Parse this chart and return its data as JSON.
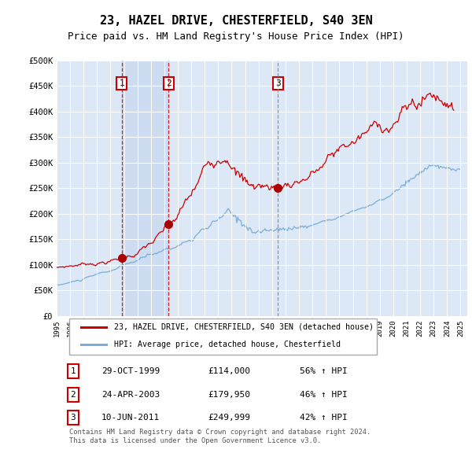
{
  "title": "23, HAZEL DRIVE, CHESTERFIELD, S40 3EN",
  "subtitle": "Price paid vs. HM Land Registry's House Price Index (HPI)",
  "title_fontsize": 11,
  "subtitle_fontsize": 9,
  "background_color": "#ffffff",
  "plot_bg_color": "#dce8f5",
  "grid_color": "#ffffff",
  "ylim": [
    0,
    500000
  ],
  "yticks": [
    0,
    50000,
    100000,
    150000,
    200000,
    250000,
    300000,
    350000,
    400000,
    450000,
    500000
  ],
  "ytick_labels": [
    "£0",
    "£50K",
    "£100K",
    "£150K",
    "£200K",
    "£250K",
    "£300K",
    "£350K",
    "£400K",
    "£450K",
    "£500K"
  ],
  "xlim_start": 1995.0,
  "xlim_end": 2025.5,
  "transactions": [
    {
      "num": 1,
      "date": "29-OCT-1999",
      "price": 114000,
      "x": 1999.83,
      "pct": "56%",
      "dir": "↑",
      "line_color": "#cc0000",
      "line_style": "--"
    },
    {
      "num": 2,
      "date": "24-APR-2003",
      "price": 179950,
      "x": 2003.31,
      "pct": "46%",
      "dir": "↑",
      "line_color": "#cc0000",
      "line_style": "--"
    },
    {
      "num": 3,
      "date": "10-JUN-2011",
      "price": 249999,
      "x": 2011.44,
      "pct": "42%",
      "dir": "↑",
      "line_color": "#888888",
      "line_style": "--"
    }
  ],
  "shaded_region": [
    1999.83,
    2003.31
  ],
  "red_line_color": "#cc0000",
  "blue_line_color": "#7aaed6",
  "marker_color": "#aa0000",
  "legend_label_red": "23, HAZEL DRIVE, CHESTERFIELD, S40 3EN (detached house)",
  "legend_label_blue": "HPI: Average price, detached house, Chesterfield",
  "footer": "Contains HM Land Registry data © Crown copyright and database right 2024.\nThis data is licensed under the Open Government Licence v3.0."
}
